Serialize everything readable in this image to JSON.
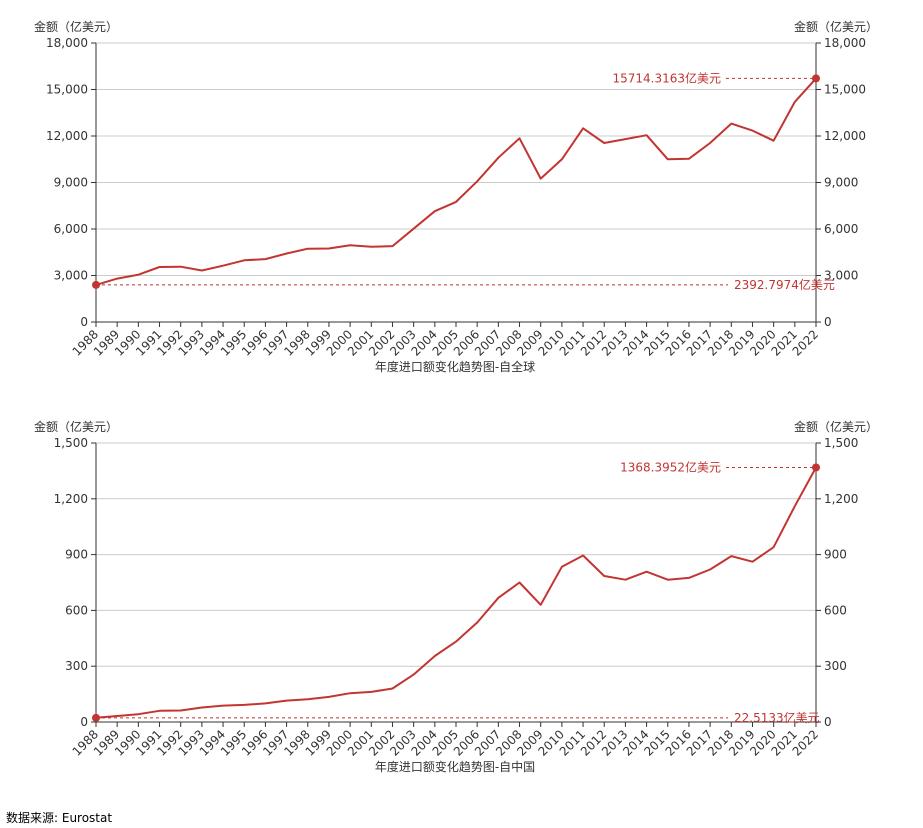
{
  "colors": {
    "series": "#c23531",
    "grid": "#cccccc",
    "axis": "#333333",
    "text": "#333333"
  },
  "source": "数据来源: Eurostat",
  "chart_data": [
    {
      "type": "line",
      "xlabel": "年度进口额变化趋势图-自全球",
      "ylabel_left": "金额（亿美元）",
      "ylabel_right": "金额（亿美元）",
      "ylim": [
        0,
        18000
      ],
      "yticks": [
        "0",
        "3,000",
        "6,000",
        "9,000",
        "12,000",
        "15,000",
        "18,000"
      ],
      "ytick_values": [
        0,
        3000,
        6000,
        9000,
        12000,
        15000,
        18000
      ],
      "grid": true,
      "x": [
        "1988",
        "1989",
        "1990",
        "1991",
        "1992",
        "1993",
        "1994",
        "1995",
        "1996",
        "1997",
        "1998",
        "1999",
        "2000",
        "2001",
        "2002",
        "2003",
        "2004",
        "2005",
        "2006",
        "2007",
        "2008",
        "2009",
        "2010",
        "2011",
        "2012",
        "2013",
        "2014",
        "2015",
        "2016",
        "2017",
        "2018",
        "2019",
        "2020",
        "2021",
        "2022"
      ],
      "series": [
        {
          "values": [
            2392.7974,
            2800,
            3050,
            3550,
            3570,
            3320,
            3630,
            3980,
            4060,
            4420,
            4730,
            4740,
            4950,
            4850,
            4900,
            6020,
            7150,
            7750,
            9080,
            10600,
            11850,
            9250,
            10500,
            12500,
            11550,
            11800,
            12050,
            10500,
            10530,
            11550,
            12800,
            12350,
            11700,
            14200,
            15714.3163
          ]
        }
      ],
      "markers": [
        {
          "label": "15714.3163亿美元",
          "value": 15714.3163,
          "year": "2022",
          "type": "max"
        },
        {
          "label": "2392.7974亿美元",
          "value": 2392.7974,
          "year": "1988",
          "type": "min"
        }
      ]
    },
    {
      "type": "line",
      "xlabel": "年度进口额变化趋势图-自中国",
      "ylabel_left": "金额（亿美元）",
      "ylabel_right": "金额（亿美元）",
      "ylim": [
        0,
        1500
      ],
      "yticks": [
        "0",
        "300",
        "600",
        "900",
        "1,200",
        "1,500"
      ],
      "ytick_values": [
        0,
        300,
        600,
        900,
        1200,
        1500
      ],
      "grid": true,
      "x": [
        "1988",
        "1989",
        "1990",
        "1991",
        "1992",
        "1993",
        "1994",
        "1995",
        "1996",
        "1997",
        "1998",
        "1999",
        "2000",
        "2001",
        "2002",
        "2003",
        "2004",
        "2005",
        "2006",
        "2007",
        "2008",
        "2009",
        "2010",
        "2011",
        "2012",
        "2013",
        "2014",
        "2015",
        "2016",
        "2017",
        "2018",
        "2019",
        "2020",
        "2021",
        "2022"
      ],
      "series": [
        {
          "values": [
            22.5133,
            32,
            42,
            60,
            62,
            78,
            88,
            92,
            100,
            115,
            122,
            135,
            155,
            162,
            180,
            255,
            355,
            432,
            535,
            668,
            750,
            630,
            835,
            895,
            785,
            765,
            808,
            765,
            775,
            820,
            892,
            862,
            940,
            1160,
            1368.3952
          ]
        }
      ],
      "markers": [
        {
          "label": "1368.3952亿美元",
          "value": 1368.3952,
          "year": "2022",
          "type": "max"
        },
        {
          "label": "22.5133亿美元",
          "value": 22.5133,
          "year": "1988",
          "type": "min"
        }
      ]
    }
  ]
}
